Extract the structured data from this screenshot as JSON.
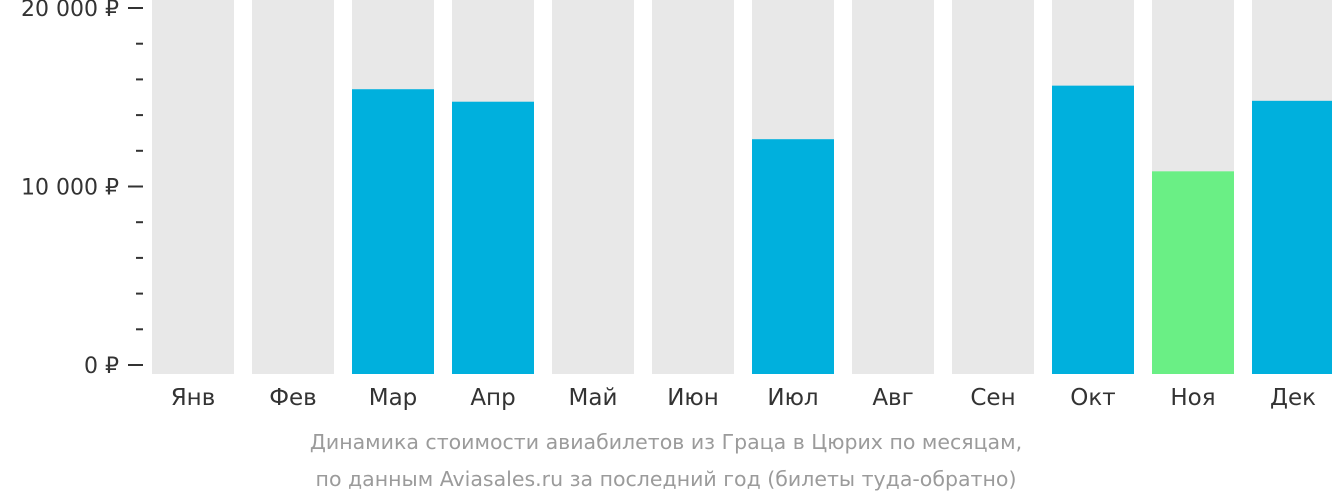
{
  "chart_data": {
    "type": "bar",
    "categories": [
      "Янв",
      "Фев",
      "Мар",
      "Апр",
      "Май",
      "Июн",
      "Июл",
      "Авг",
      "Сен",
      "Окт",
      "Ноя",
      "Дек"
    ],
    "values": [
      null,
      null,
      15450,
      14750,
      null,
      null,
      12650,
      null,
      null,
      15650,
      10850,
      14800
    ],
    "y_ticks": [
      {
        "value": 20000,
        "label": "20 000 ₽"
      },
      {
        "value": 10000,
        "label": "10 000 ₽"
      },
      {
        "value": 0,
        "label": "0 ₽"
      }
    ],
    "ylim": [
      0,
      20000
    ],
    "minor_tick_step": 2000,
    "grid": false,
    "caption_line1": "Динамика стоимости авиабилетов из Граца в Цюрих по месяцам,",
    "caption_line2": "по данным Aviasales.ru за последний год (билеты туда-обратно)",
    "colors": {
      "bar_background": "#e8e8e8",
      "bar_default": "#00b0dd",
      "bar_cheapest": "#6aef85",
      "axis": "#333333",
      "caption": "#9b9b9b"
    },
    "cheapest_category": "Ноя"
  }
}
